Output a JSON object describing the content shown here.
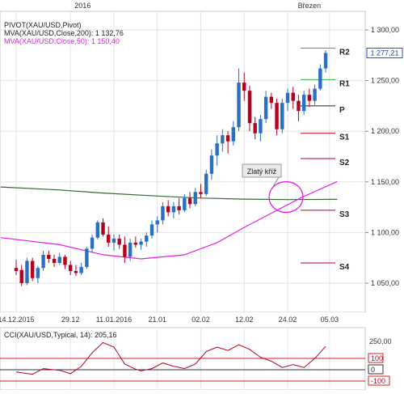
{
  "top_axis": {
    "labels": [
      {
        "text": "2016",
        "date": "2016-01-01"
      },
      {
        "text": "Březen",
        "date": "2016-03-01"
      }
    ]
  },
  "legend": {
    "pivot": "PIVOT(XAU/USD,Pivot)",
    "ma200": "MVA(XAU/USD,Close,200): 1 132,76",
    "ma50": "MVA(XAU/USD,Close,50): 1 150,40"
  },
  "annotation": {
    "text": "Zlatý kříž"
  },
  "last_price": "1 277,21",
  "cci_legend": "CCI(XAU/USD,Typical, 14): 205,16",
  "colors": {
    "up": "#2a6fc4",
    "down": "#b4001e",
    "ma200": "#2f6a2f",
    "ma50": "#e51ee6",
    "pivot_p": "#222222",
    "resistance": "#3cb043",
    "support": "#b4001e",
    "cci_line": "#b4001e",
    "cci_band": "#d22222",
    "price_tag": "#1e4fd6",
    "marker": "#f1a320"
  },
  "chart_data": [
    {
      "type": "candlestick",
      "instrument": "XAU/USD",
      "x_tick_labels": [
        "14.12.2015",
        "29.12",
        "11.01.2016",
        "21.01",
        "02.02",
        "12.02",
        "24.02",
        "05.03"
      ],
      "y_tick_labels": [
        "1 050,00",
        "1 100,00",
        "1 150,00",
        "1 200,00",
        "1 250,00",
        "1 300,00"
      ],
      "ylim": [
        1030,
        1315
      ],
      "grid": true,
      "candles": [
        {
          "date": "2015-12-14",
          "o": 1065,
          "h": 1073,
          "l": 1058,
          "c": 1062
        },
        {
          "date": "2015-12-15",
          "o": 1063,
          "h": 1068,
          "l": 1047,
          "c": 1050
        },
        {
          "date": "2015-12-16",
          "o": 1050,
          "h": 1075,
          "l": 1048,
          "c": 1072
        },
        {
          "date": "2015-12-17",
          "o": 1072,
          "h": 1075,
          "l": 1052,
          "c": 1055
        },
        {
          "date": "2015-12-18",
          "o": 1055,
          "h": 1067,
          "l": 1050,
          "c": 1065
        },
        {
          "date": "2015-12-21",
          "o": 1065,
          "h": 1082,
          "l": 1062,
          "c": 1078
        },
        {
          "date": "2015-12-22",
          "o": 1078,
          "h": 1082,
          "l": 1070,
          "c": 1074
        },
        {
          "date": "2015-12-23",
          "o": 1074,
          "h": 1078,
          "l": 1066,
          "c": 1070
        },
        {
          "date": "2015-12-24",
          "o": 1070,
          "h": 1080,
          "l": 1068,
          "c": 1076
        },
        {
          "date": "2015-12-28",
          "o": 1076,
          "h": 1078,
          "l": 1064,
          "c": 1068
        },
        {
          "date": "2015-12-29",
          "o": 1068,
          "h": 1072,
          "l": 1058,
          "c": 1062
        },
        {
          "date": "2015-12-30",
          "o": 1062,
          "h": 1068,
          "l": 1057,
          "c": 1060
        },
        {
          "date": "2015-12-31",
          "o": 1060,
          "h": 1070,
          "l": 1058,
          "c": 1066
        },
        {
          "date": "2016-01-04",
          "o": 1066,
          "h": 1086,
          "l": 1064,
          "c": 1084
        },
        {
          "date": "2016-01-05",
          "o": 1084,
          "h": 1098,
          "l": 1080,
          "c": 1095
        },
        {
          "date": "2016-01-06",
          "o": 1095,
          "h": 1112,
          "l": 1093,
          "c": 1110
        },
        {
          "date": "2016-01-07",
          "o": 1110,
          "h": 1114,
          "l": 1096,
          "c": 1098
        },
        {
          "date": "2016-01-08",
          "o": 1098,
          "h": 1106,
          "l": 1086,
          "c": 1090
        },
        {
          "date": "2016-01-11",
          "o": 1090,
          "h": 1098,
          "l": 1082,
          "c": 1094
        },
        {
          "date": "2016-01-12",
          "o": 1094,
          "h": 1098,
          "l": 1084,
          "c": 1088
        },
        {
          "date": "2016-01-13",
          "o": 1088,
          "h": 1096,
          "l": 1070,
          "c": 1076
        },
        {
          "date": "2016-01-14",
          "o": 1076,
          "h": 1094,
          "l": 1072,
          "c": 1090
        },
        {
          "date": "2016-01-15",
          "o": 1090,
          "h": 1096,
          "l": 1085,
          "c": 1088
        },
        {
          "date": "2016-01-18",
          "o": 1088,
          "h": 1094,
          "l": 1083,
          "c": 1091
        },
        {
          "date": "2016-01-19",
          "o": 1091,
          "h": 1100,
          "l": 1086,
          "c": 1097
        },
        {
          "date": "2016-01-20",
          "o": 1097,
          "h": 1112,
          "l": 1094,
          "c": 1108
        },
        {
          "date": "2016-01-21",
          "o": 1108,
          "h": 1116,
          "l": 1100,
          "c": 1112
        },
        {
          "date": "2016-01-22",
          "o": 1112,
          "h": 1130,
          "l": 1108,
          "c": 1126
        },
        {
          "date": "2016-01-25",
          "o": 1126,
          "h": 1132,
          "l": 1116,
          "c": 1120
        },
        {
          "date": "2016-01-26",
          "o": 1120,
          "h": 1130,
          "l": 1114,
          "c": 1126
        },
        {
          "date": "2016-01-27",
          "o": 1126,
          "h": 1134,
          "l": 1118,
          "c": 1122
        },
        {
          "date": "2016-01-28",
          "o": 1122,
          "h": 1138,
          "l": 1120,
          "c": 1134
        },
        {
          "date": "2016-01-29",
          "o": 1134,
          "h": 1140,
          "l": 1124,
          "c": 1128
        },
        {
          "date": "2016-02-01",
          "o": 1128,
          "h": 1144,
          "l": 1126,
          "c": 1140
        },
        {
          "date": "2016-02-02",
          "o": 1140,
          "h": 1148,
          "l": 1134,
          "c": 1138
        },
        {
          "date": "2016-02-03",
          "o": 1138,
          "h": 1162,
          "l": 1136,
          "c": 1158
        },
        {
          "date": "2016-02-04",
          "o": 1158,
          "h": 1182,
          "l": 1152,
          "c": 1176
        },
        {
          "date": "2016-02-05",
          "o": 1176,
          "h": 1196,
          "l": 1166,
          "c": 1188
        },
        {
          "date": "2016-02-08",
          "o": 1188,
          "h": 1202,
          "l": 1180,
          "c": 1196
        },
        {
          "date": "2016-02-09",
          "o": 1196,
          "h": 1200,
          "l": 1178,
          "c": 1190
        },
        {
          "date": "2016-02-10",
          "o": 1190,
          "h": 1210,
          "l": 1186,
          "c": 1204
        },
        {
          "date": "2016-02-11",
          "o": 1204,
          "h": 1262,
          "l": 1200,
          "c": 1248
        },
        {
          "date": "2016-02-12",
          "o": 1248,
          "h": 1258,
          "l": 1230,
          "c": 1240
        },
        {
          "date": "2016-02-15",
          "o": 1240,
          "h": 1245,
          "l": 1200,
          "c": 1208
        },
        {
          "date": "2016-02-16",
          "o": 1208,
          "h": 1214,
          "l": 1192,
          "c": 1198
        },
        {
          "date": "2016-02-17",
          "o": 1198,
          "h": 1216,
          "l": 1190,
          "c": 1212
        },
        {
          "date": "2016-02-18",
          "o": 1212,
          "h": 1240,
          "l": 1208,
          "c": 1234
        },
        {
          "date": "2016-02-19",
          "o": 1234,
          "h": 1238,
          "l": 1222,
          "c": 1228
        },
        {
          "date": "2016-02-22",
          "o": 1228,
          "h": 1232,
          "l": 1196,
          "c": 1202
        },
        {
          "date": "2016-02-23",
          "o": 1202,
          "h": 1232,
          "l": 1198,
          "c": 1228
        },
        {
          "date": "2016-02-24",
          "o": 1228,
          "h": 1242,
          "l": 1220,
          "c": 1238
        },
        {
          "date": "2016-02-25",
          "o": 1238,
          "h": 1244,
          "l": 1222,
          "c": 1230
        },
        {
          "date": "2016-02-26",
          "o": 1230,
          "h": 1236,
          "l": 1210,
          "c": 1220
        },
        {
          "date": "2016-02-29",
          "o": 1220,
          "h": 1240,
          "l": 1216,
          "c": 1236
        },
        {
          "date": "2016-03-01",
          "o": 1236,
          "h": 1242,
          "l": 1224,
          "c": 1230
        },
        {
          "date": "2016-03-02",
          "o": 1230,
          "h": 1246,
          "l": 1226,
          "c": 1242
        },
        {
          "date": "2016-03-03",
          "o": 1242,
          "h": 1266,
          "l": 1240,
          "c": 1262
        },
        {
          "date": "2016-03-04",
          "o": 1262,
          "h": 1280,
          "l": 1258,
          "c": 1277.21
        }
      ],
      "ma200": [
        {
          "date": "2015-12-10",
          "v": 1145
        },
        {
          "date": "2015-12-24",
          "v": 1142
        },
        {
          "date": "2016-01-07",
          "v": 1139
        },
        {
          "date": "2016-01-21",
          "v": 1136
        },
        {
          "date": "2016-02-02",
          "v": 1134
        },
        {
          "date": "2016-02-12",
          "v": 1133
        },
        {
          "date": "2016-02-24",
          "v": 1132.5
        },
        {
          "date": "2016-03-07",
          "v": 1132.76
        }
      ],
      "ma50": [
        {
          "date": "2015-12-10",
          "v": 1095
        },
        {
          "date": "2015-12-24",
          "v": 1088
        },
        {
          "date": "2016-01-07",
          "v": 1078
        },
        {
          "date": "2016-01-18",
          "v": 1074
        },
        {
          "date": "2016-01-28",
          "v": 1078
        },
        {
          "date": "2016-02-05",
          "v": 1090
        },
        {
          "date": "2016-02-12",
          "v": 1105
        },
        {
          "date": "2016-02-20",
          "v": 1120
        },
        {
          "date": "2016-02-27",
          "v": 1134
        },
        {
          "date": "2016-03-07",
          "v": 1150.4
        }
      ],
      "pivot_levels": [
        {
          "label": "R2",
          "value": 1282,
          "kind": "resistance"
        },
        {
          "label": "R1",
          "value": 1251,
          "kind": "resistance"
        },
        {
          "label": "P",
          "value": 1225,
          "kind": "pivot"
        },
        {
          "label": "S1",
          "value": 1198,
          "kind": "support"
        },
        {
          "label": "S2",
          "value": 1173,
          "kind": "support"
        },
        {
          "label": "S3",
          "value": 1122,
          "kind": "support"
        },
        {
          "label": "S4",
          "value": 1070,
          "kind": "support"
        }
      ]
    },
    {
      "type": "line",
      "series_name": "CCI(XAU/USD,Typical, 14)",
      "y_tick_labels": [
        "250,00",
        "100",
        "0",
        "-100"
      ],
      "bands": [
        100,
        0,
        -100
      ],
      "ylim": [
        -135,
        290
      ],
      "points": [
        {
          "date": "2015-12-14",
          "v": -20
        },
        {
          "date": "2015-12-17",
          "v": -40
        },
        {
          "date": "2015-12-21",
          "v": 10
        },
        {
          "date": "2015-12-24",
          "v": -5
        },
        {
          "date": "2015-12-29",
          "v": -35
        },
        {
          "date": "2015-12-31",
          "v": 30
        },
        {
          "date": "2016-01-05",
          "v": 150
        },
        {
          "date": "2016-01-07",
          "v": 240
        },
        {
          "date": "2016-01-11",
          "v": 200
        },
        {
          "date": "2016-01-13",
          "v": 50
        },
        {
          "date": "2016-01-15",
          "v": 5
        },
        {
          "date": "2016-01-18",
          "v": -10
        },
        {
          "date": "2016-01-20",
          "v": 10
        },
        {
          "date": "2016-01-22",
          "v": 60
        },
        {
          "date": "2016-01-26",
          "v": 30
        },
        {
          "date": "2016-01-28",
          "v": 10
        },
        {
          "date": "2016-02-01",
          "v": 50
        },
        {
          "date": "2016-02-03",
          "v": 160
        },
        {
          "date": "2016-02-05",
          "v": 200
        },
        {
          "date": "2016-02-09",
          "v": 170
        },
        {
          "date": "2016-02-11",
          "v": 220
        },
        {
          "date": "2016-02-15",
          "v": 180
        },
        {
          "date": "2016-02-17",
          "v": 110
        },
        {
          "date": "2016-02-19",
          "v": 75
        },
        {
          "date": "2016-02-23",
          "v": 20
        },
        {
          "date": "2016-02-25",
          "v": 45
        },
        {
          "date": "2016-02-29",
          "v": 20
        },
        {
          "date": "2016-03-02",
          "v": 100
        },
        {
          "date": "2016-03-04",
          "v": 205.16
        }
      ]
    }
  ]
}
